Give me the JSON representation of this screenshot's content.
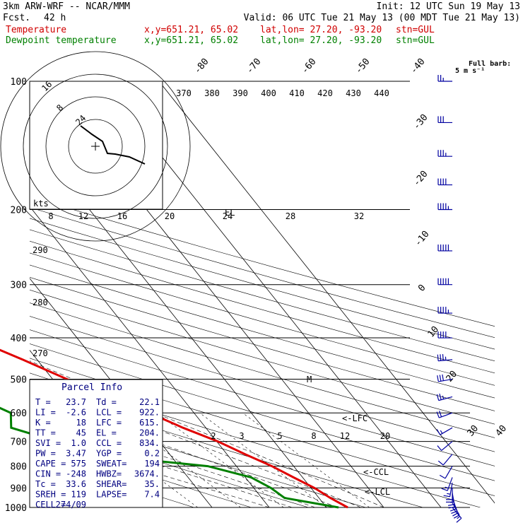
{
  "header": {
    "model": "3km ARW-WRF -- NCAR/MMM",
    "init": "Init: 12 UTC Sun 19 May 13",
    "fcst_label": "Fcst.",
    "fcst_value": "42 h",
    "valid": "Valid: 06 UTC Tue 21 May 13 (00 MDT Tue 21 May 13)",
    "temp_label": "Temperature",
    "dew_label": "Dewpoint temperature",
    "xy": "x,y=651.21, 65.02",
    "latlon": "lat,lon= 27.20, -93.20",
    "stn": "stn=GUL"
  },
  "barb_legend": {
    "line1": "Full barb:",
    "line2": "5 m s⁻¹"
  },
  "colors": {
    "temperature": "#e00000",
    "dewpoint": "#008000",
    "barbs": "#0000a0",
    "grid": "#000000"
  },
  "chart_data": {
    "type": "skew-t",
    "pressure_levels": [
      "100",
      "200",
      "300",
      "400",
      "500",
      "600",
      "700",
      "800",
      "900",
      "1000"
    ],
    "isotherm_labels": [
      "-80",
      "-70",
      "-60",
      "-50",
      "-40",
      "-30",
      "-20",
      "-10",
      "0",
      "10",
      "20",
      "30",
      "40"
    ],
    "theta_labels": [
      "370",
      "380",
      "390",
      "400",
      "410",
      "420",
      "430",
      "440"
    ],
    "theta_left_labels": [
      "290",
      "280",
      "270"
    ],
    "mixing_ratio_labels": [
      "2",
      "3",
      "5",
      "8",
      "12",
      "20"
    ],
    "temperature": [
      [
        1000,
        23.7
      ],
      [
        950,
        22.0
      ],
      [
        900,
        20.6
      ],
      [
        850,
        18.4
      ],
      [
        800,
        16.2
      ],
      [
        750,
        13.2
      ],
      [
        700,
        10.2
      ],
      [
        650,
        6.0
      ],
      [
        600,
        2.2
      ],
      [
        550,
        -2.0
      ],
      [
        500,
        -7.5
      ],
      [
        450,
        -12.5
      ],
      [
        400,
        -18.5
      ],
      [
        350,
        -25.5
      ],
      [
        300,
        -33.5
      ],
      [
        250,
        -43.0
      ],
      [
        200,
        -54.0
      ],
      [
        175,
        -61.0
      ],
      [
        150,
        -67.5
      ],
      [
        135,
        -70.5
      ],
      [
        125,
        -72.0
      ],
      [
        115,
        -68.0
      ],
      [
        100,
        -62.5
      ]
    ],
    "dewpoint": [
      [
        1000,
        22.1
      ],
      [
        950,
        14.0
      ],
      [
        900,
        13.0
      ],
      [
        850,
        11.0
      ],
      [
        800,
        5.0
      ],
      [
        750,
        -14.0
      ],
      [
        700,
        -18.0
      ],
      [
        650,
        -24.0
      ],
      [
        600,
        -22.0
      ],
      [
        550,
        -26.0
      ],
      [
        500,
        -28.0
      ],
      [
        450,
        -34.0
      ],
      [
        400,
        -45.0
      ],
      [
        375,
        -47.0
      ],
      [
        350,
        -42.0
      ],
      [
        300,
        -36.0
      ],
      [
        250,
        -42.0
      ],
      [
        200,
        -62.0
      ],
      [
        170,
        -82.0
      ],
      [
        150,
        -86.0
      ],
      [
        130,
        -87.0
      ],
      [
        115,
        -90.0
      ],
      [
        100,
        -95.0
      ]
    ],
    "levels_marked": [
      "<-LFC",
      "<-CCL",
      "<-LCL",
      "M",
      "EL"
    ],
    "hodograph": {
      "rings": [
        "8",
        "16",
        "24",
        "32"
      ],
      "labels": [
        "kts",
        "8",
        "12",
        "16",
        "20",
        "24",
        "28",
        "32"
      ],
      "points": [
        [
          14,
          -2
        ],
        [
          17,
          -5
        ],
        [
          22,
          -6
        ],
        [
          28,
          -6
        ],
        [
          33,
          -8
        ],
        [
          38,
          -10
        ]
      ]
    },
    "wind_barbs": [
      {
        "p": 1000,
        "spd": 15,
        "dir": 140
      },
      {
        "p": 975,
        "spd": 20,
        "dir": 150
      },
      {
        "p": 950,
        "spd": 25,
        "dir": 160
      },
      {
        "p": 925,
        "spd": 25,
        "dir": 170
      },
      {
        "p": 900,
        "spd": 20,
        "dir": 180
      },
      {
        "p": 875,
        "spd": 15,
        "dir": 190
      },
      {
        "p": 850,
        "spd": 15,
        "dir": 200
      },
      {
        "p": 800,
        "spd": 10,
        "dir": 210
      },
      {
        "p": 750,
        "spd": 10,
        "dir": 220
      },
      {
        "p": 700,
        "spd": 10,
        "dir": 230
      },
      {
        "p": 650,
        "spd": 15,
        "dir": 240
      },
      {
        "p": 600,
        "spd": 20,
        "dir": 250
      },
      {
        "p": 550,
        "spd": 25,
        "dir": 255
      },
      {
        "p": 500,
        "spd": 30,
        "dir": 260
      },
      {
        "p": 450,
        "spd": 35,
        "dir": 265
      },
      {
        "p": 400,
        "spd": 40,
        "dir": 270
      },
      {
        "p": 350,
        "spd": 45,
        "dir": 270
      },
      {
        "p": 300,
        "spd": 50,
        "dir": 270
      },
      {
        "p": 250,
        "spd": 50,
        "dir": 270
      },
      {
        "p": 200,
        "spd": 45,
        "dir": 270
      },
      {
        "p": 175,
        "spd": 40,
        "dir": 270
      },
      {
        "p": 150,
        "spd": 35,
        "dir": 270
      },
      {
        "p": 125,
        "spd": 30,
        "dir": 270
      },
      {
        "p": 100,
        "spd": 25,
        "dir": 270
      }
    ],
    "parcel_info": {
      "title": "Parcel Info",
      "rows": [
        [
          "T  =",
          "23.7",
          "Td =",
          "22.1"
        ],
        [
          "LI =",
          "-2.6",
          "LCL =",
          "922."
        ],
        [
          "K  =",
          "18",
          "LFC =",
          "615."
        ],
        [
          "TT =",
          "45",
          "EL =",
          "204."
        ],
        [
          "SVI =",
          "1.0",
          "CCL =",
          "834."
        ],
        [
          "PW =",
          "3.47",
          "YGP =",
          "0.2"
        ],
        [
          "CAPE =",
          "575",
          "SWEAT=",
          "194"
        ],
        [
          "CIN =",
          "-248",
          "HWBZ=",
          "3674."
        ],
        [
          "Tc =",
          "33.6",
          "SHEAR=",
          "35."
        ],
        [
          "SREH =",
          "119",
          "LAPSE=",
          "7.4"
        ],
        [
          "CELL =",
          "274/09",
          "",
          ""
        ]
      ]
    }
  }
}
